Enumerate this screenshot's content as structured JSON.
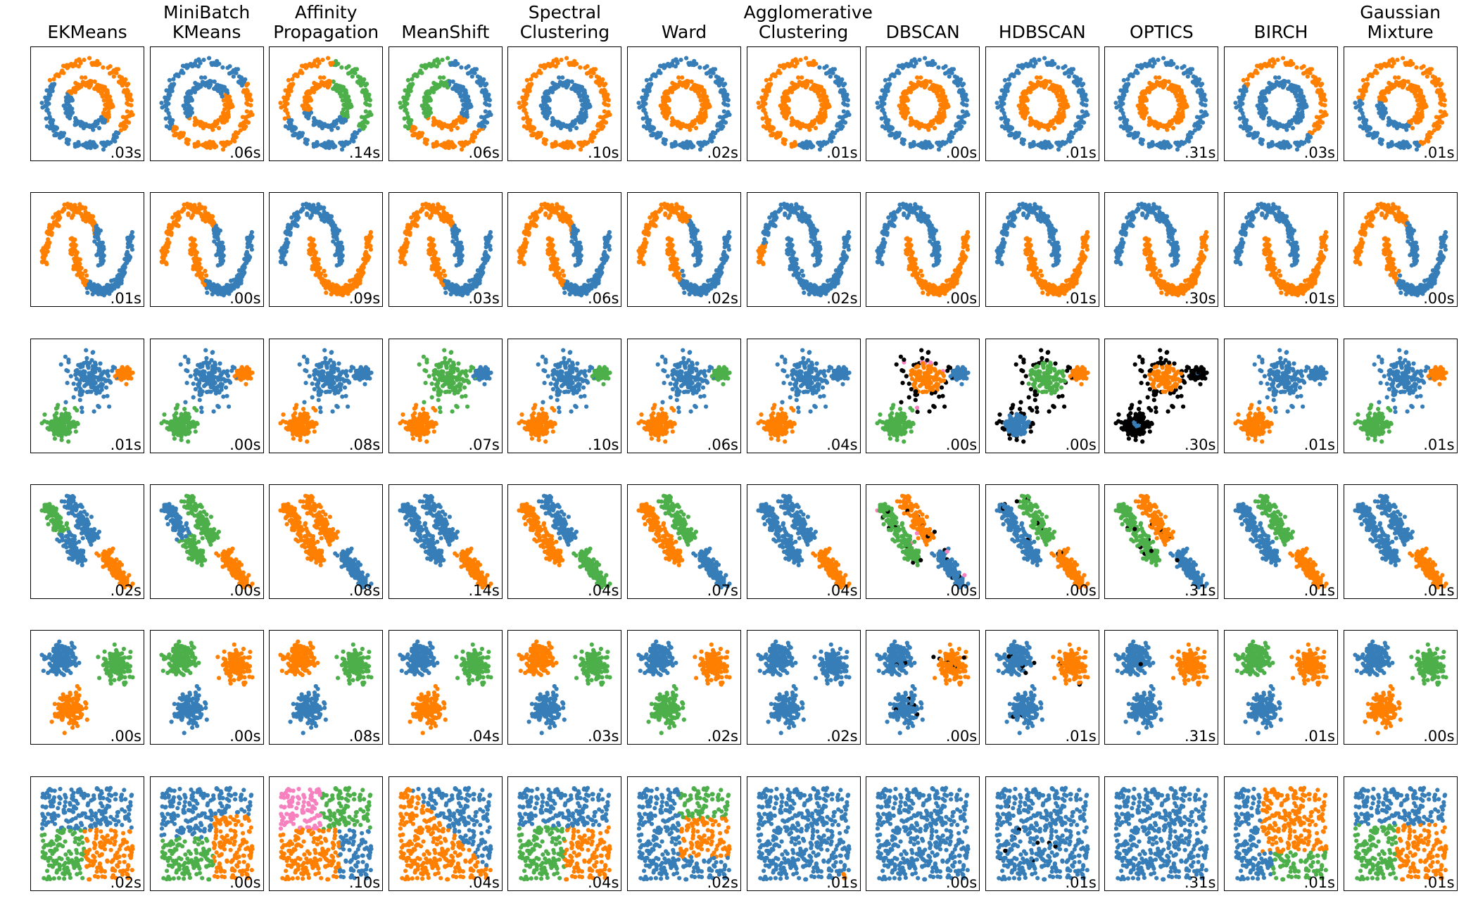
{
  "chart_data": {
    "type": "scatter",
    "grid": false,
    "algorithms": [
      {
        "title_lines": [
          "",
          "EKMeans"
        ]
      },
      {
        "title_lines": [
          "MiniBatch",
          "KMeans"
        ]
      },
      {
        "title_lines": [
          "Affinity",
          "Propagation"
        ]
      },
      {
        "title_lines": [
          "",
          "MeanShift"
        ]
      },
      {
        "title_lines": [
          "Spectral",
          "Clustering"
        ]
      },
      {
        "title_lines": [
          "",
          "Ward"
        ]
      },
      {
        "title_lines": [
          "Agglomerative",
          "Clustering"
        ]
      },
      {
        "title_lines": [
          "",
          "DBSCAN"
        ]
      },
      {
        "title_lines": [
          "",
          "HDBSCAN"
        ]
      },
      {
        "title_lines": [
          "",
          "OPTICS"
        ]
      },
      {
        "title_lines": [
          "",
          "BIRCH"
        ]
      },
      {
        "title_lines": [
          "Gaussian",
          "Mixture"
        ]
      }
    ],
    "datasets": [
      "noisy circles",
      "noisy moons",
      "varied blobs",
      "anisotropic blobs",
      "blobs",
      "no structure"
    ],
    "timings": [
      [
        ".03s",
        ".06s",
        ".14s",
        ".06s",
        ".10s",
        ".02s",
        ".01s",
        ".00s",
        ".01s",
        ".31s",
        ".03s",
        ".01s"
      ],
      [
        ".01s",
        ".00s",
        ".09s",
        ".03s",
        ".06s",
        ".02s",
        ".02s",
        ".00s",
        ".01s",
        ".30s",
        ".01s",
        ".00s"
      ],
      [
        ".01s",
        ".00s",
        ".08s",
        ".07s",
        ".10s",
        ".06s",
        ".04s",
        ".00s",
        ".00s",
        ".30s",
        ".01s",
        ".01s"
      ],
      [
        ".02s",
        ".00s",
        ".08s",
        ".14s",
        ".04s",
        ".07s",
        ".04s",
        ".00s",
        ".00s",
        ".31s",
        ".01s",
        ".01s"
      ],
      [
        ".00s",
        ".00s",
        ".08s",
        ".04s",
        ".03s",
        ".02s",
        ".02s",
        ".00s",
        ".01s",
        ".31s",
        ".01s",
        ".00s"
      ],
      [
        ".02s",
        ".00s",
        ".10s",
        ".04s",
        ".04s",
        ".02s",
        ".01s",
        ".00s",
        ".01s",
        ".31s",
        ".01s",
        ".01s"
      ]
    ],
    "cluster_colors": [
      "#377eb8",
      "#ff7f00",
      "#4daf4a",
      "#f781bf"
    ],
    "noise_color": "#000000"
  }
}
